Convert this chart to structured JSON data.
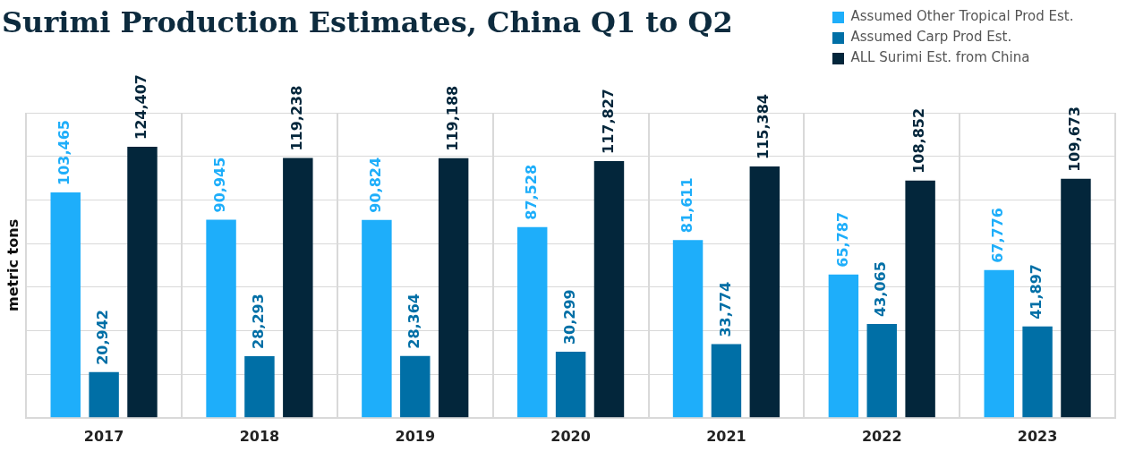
{
  "chart_data": {
    "type": "bar",
    "title": "Surimi Production Estimates, China Q1 to Q2",
    "ylabel": "metric tons",
    "categories": [
      "2017",
      "2018",
      "2019",
      "2020",
      "2021",
      "2022",
      "2023"
    ],
    "series": [
      {
        "name": "Assumed Other Tropical Prod Est.",
        "color": "#1eaefa",
        "values": [
          103465,
          90945,
          90824,
          87528,
          81611,
          65787,
          67776
        ],
        "value_labels": [
          "103,465",
          "90,945",
          "90,824",
          "87,528",
          "81,611",
          "65,787",
          "67,776"
        ]
      },
      {
        "name": "Assumed Carp Prod Est.",
        "color": "#006fa6",
        "values": [
          20942,
          28293,
          28364,
          30299,
          33774,
          43065,
          41897
        ],
        "value_labels": [
          "20,942",
          "28,293",
          "28,364",
          "30,299",
          "33,774",
          "43,065",
          "41,897"
        ]
      },
      {
        "name": "ALL Surimi Est. from China",
        "color": "#03263b",
        "values": [
          124407,
          119238,
          119188,
          117827,
          115384,
          108852,
          109673
        ],
        "value_labels": [
          "124,407",
          "119,238",
          "119,188",
          "117,827",
          "115,384",
          "108,852",
          "109,673"
        ]
      }
    ],
    "tick_labels": "x",
    "grid": true,
    "legend": "top right"
  }
}
